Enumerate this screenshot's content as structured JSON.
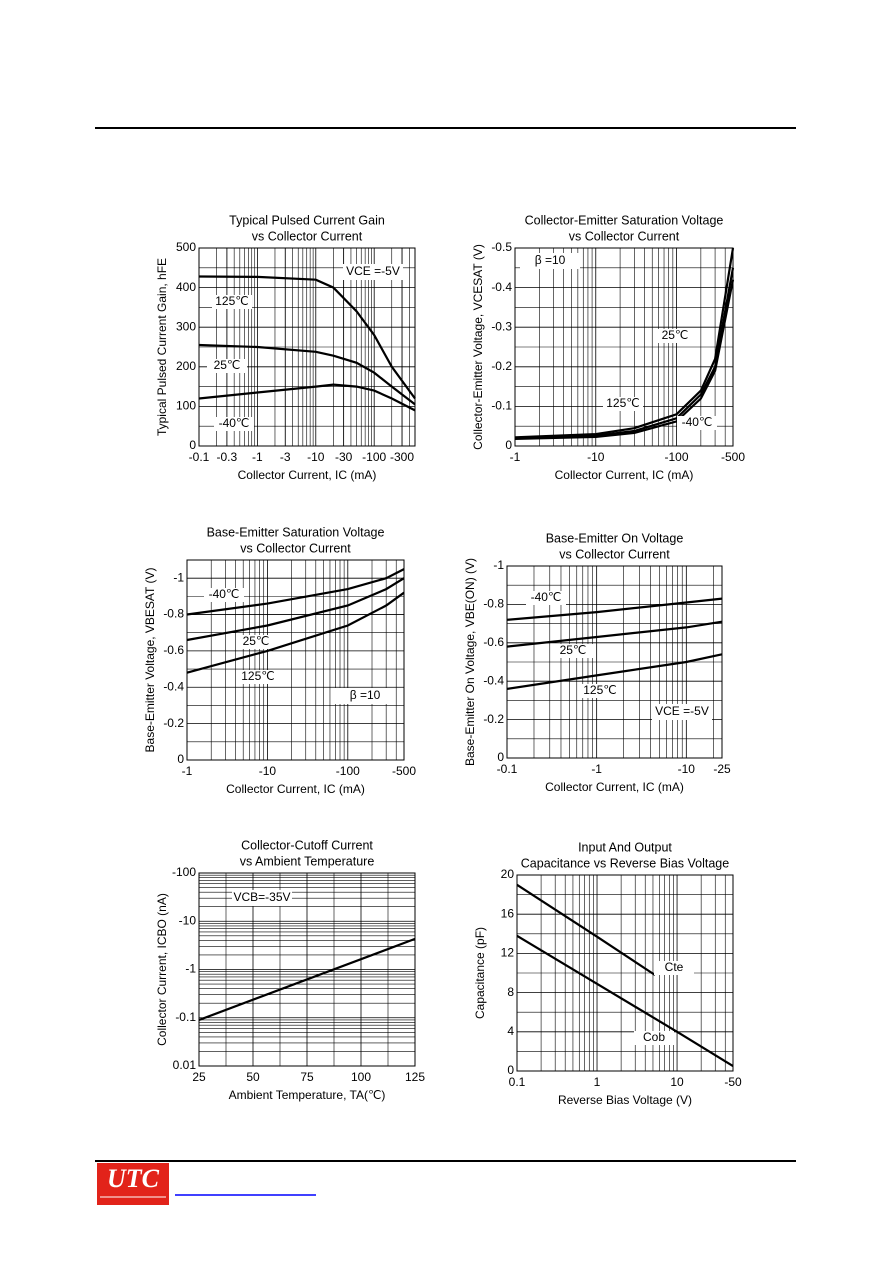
{
  "logo": "UTC",
  "chart_data": [
    {
      "type": "line",
      "title": [
        "Typical Pulsed Current Gain",
        "vs Collector Current"
      ],
      "xlabel": "Collector Current, IC (mA)",
      "ylabel": "Typical Pulsed Current Gain, hFE",
      "xlog": true,
      "ylog": false,
      "grid": true,
      "xlim": [
        -0.1,
        -500
      ],
      "xticks": [
        -0.1,
        -0.3,
        -1,
        -3,
        -10,
        -30,
        -100,
        -300
      ],
      "ylim": [
        0,
        500
      ],
      "yticks": [
        0,
        100,
        200,
        300,
        400,
        500
      ],
      "x": [
        -0.1,
        -1,
        -10,
        -20,
        -50,
        -100,
        -200,
        -500
      ],
      "series": [
        {
          "name": "125℃",
          "color": "#000000",
          "values": [
            428,
            427,
            420,
            400,
            340,
            280,
            200,
            120
          ]
        },
        {
          "name": "25℃",
          "color": "#000000",
          "values": [
            255,
            250,
            238,
            228,
            210,
            185,
            150,
            105
          ]
        },
        {
          "name": "-40℃",
          "color": "#000000",
          "values": [
            120,
            135,
            150,
            155,
            150,
            140,
            120,
            90
          ]
        }
      ],
      "annotations": [
        "VCE =-5V"
      ]
    },
    {
      "type": "line",
      "title": [
        "Collector-Emitter Saturation Voltage",
        "vs Collector Current"
      ],
      "xlabel": "Collector Current, IC (mA)",
      "ylabel": "Collector-Emitter Voltage, VCESAT (V)",
      "xlog": true,
      "ylog": false,
      "grid": true,
      "xlim": [
        -1,
        -500
      ],
      "xticks": [
        -1,
        -10,
        -100,
        -500
      ],
      "ylim": [
        0,
        -0.5
      ],
      "yticks": [
        0,
        -0.1,
        -0.2,
        -0.3,
        -0.4,
        -0.5
      ],
      "x": [
        -1,
        -10,
        -30,
        -100,
        -200,
        -300,
        -500
      ],
      "series": [
        {
          "name": "25℃",
          "color": "#000000",
          "values": [
            -0.02,
            -0.026,
            -0.038,
            -0.07,
            -0.13,
            -0.2,
            -0.45
          ]
        },
        {
          "name": "125℃",
          "color": "#000000",
          "values": [
            -0.022,
            -0.03,
            -0.045,
            -0.08,
            -0.14,
            -0.22,
            -0.5
          ]
        },
        {
          "name": "-40℃",
          "color": "#000000",
          "values": [
            -0.018,
            -0.023,
            -0.033,
            -0.062,
            -0.12,
            -0.19,
            -0.42
          ]
        }
      ],
      "annotations": [
        "β =10"
      ]
    },
    {
      "type": "line",
      "title": [
        "Base-Emitter Saturation Voltage",
        "vs Collector Current"
      ],
      "xlabel": "Collector Current, IC (mA)",
      "ylabel": "Base-Emitter Voltage, VBESAT (V)",
      "xlog": true,
      "ylog": false,
      "grid": true,
      "xlim": [
        -1,
        -500
      ],
      "xticks": [
        -1,
        -10,
        -100,
        -500
      ],
      "ylim": [
        0,
        -1.1
      ],
      "yticks": [
        0,
        -0.2,
        -0.4,
        -0.6,
        -0.8,
        -1
      ],
      "x": [
        -1,
        -10,
        -100,
        -300,
        -500
      ],
      "series": [
        {
          "name": "-40℃",
          "color": "#000000",
          "values": [
            -0.8,
            -0.86,
            -0.94,
            -1.0,
            -1.05
          ]
        },
        {
          "name": "25℃",
          "color": "#000000",
          "values": [
            -0.66,
            -0.74,
            -0.85,
            -0.94,
            -1.0
          ]
        },
        {
          "name": "125℃",
          "color": "#000000",
          "values": [
            -0.48,
            -0.6,
            -0.74,
            -0.85,
            -0.92
          ]
        }
      ],
      "annotations": [
        "β =10"
      ]
    },
    {
      "type": "line",
      "title": [
        "Base-Emitter On Voltage",
        "vs Collector Current"
      ],
      "xlabel": "Collector Current, IC (mA)",
      "ylabel": "Base-Emitter On Voltage, VBE(ON) (V)",
      "xlog": true,
      "ylog": false,
      "grid": true,
      "xlim": [
        -0.1,
        -25
      ],
      "xticks": [
        -0.1,
        -1,
        -10,
        -25
      ],
      "ylim": [
        0,
        -1
      ],
      "yticks": [
        0,
        -0.2,
        -0.4,
        -0.6,
        -0.8,
        -1
      ],
      "x": [
        -0.1,
        -1,
        -10,
        -25
      ],
      "series": [
        {
          "name": "-40℃",
          "color": "#000000",
          "values": [
            -0.72,
            -0.76,
            -0.81,
            -0.83
          ]
        },
        {
          "name": "25℃",
          "color": "#000000",
          "values": [
            -0.58,
            -0.63,
            -0.68,
            -0.71
          ]
        },
        {
          "name": "125℃",
          "color": "#000000",
          "values": [
            -0.36,
            -0.43,
            -0.5,
            -0.54
          ]
        }
      ],
      "annotations": [
        "VCE =-5V"
      ]
    },
    {
      "type": "line",
      "title": [
        "Collector-Cutoff Current",
        "vs Ambient Temperature"
      ],
      "xlabel": "Ambient Temperature, TA(℃)",
      "ylabel": "Collector Current, ICBO (nA)",
      "xlog": false,
      "ylog": true,
      "grid": true,
      "xlim": [
        25,
        125
      ],
      "xticks": [
        25,
        50,
        75,
        100,
        125
      ],
      "ylim": [
        0.01,
        -100
      ],
      "yticks": [
        0.01,
        -0.1,
        -1,
        -10,
        -100
      ],
      "x": [
        25,
        125
      ],
      "series": [
        {
          "name": null,
          "color": "#000000",
          "values": [
            -0.09,
            -4.3
          ]
        }
      ],
      "annotations": [
        "VCB=-35V"
      ]
    },
    {
      "type": "line",
      "title": [
        "Input And Output",
        "Capacitance vs Reverse Bias Voltage"
      ],
      "xlabel": "Reverse Bias Voltage (V)",
      "ylabel": "Capacitance (pF)",
      "xlog": true,
      "ylog": false,
      "grid": true,
      "xlim": [
        0.1,
        -50
      ],
      "xticks": [
        0.1,
        1,
        10,
        -50
      ],
      "ylim": [
        0,
        20
      ],
      "yticks": [
        0,
        4,
        8,
        12,
        16,
        20
      ],
      "series": [
        {
          "name": "Cte",
          "color": "#000000",
          "x": [
            0.1,
            1,
            5.3
          ],
          "values": [
            19,
            13.7,
            9.8
          ]
        },
        {
          "name": "Cob",
          "color": "#000000",
          "x": [
            0.1,
            1,
            10,
            -50
          ],
          "values": [
            13.8,
            8.9,
            4,
            0.5
          ]
        }
      ],
      "annotations": []
    }
  ]
}
